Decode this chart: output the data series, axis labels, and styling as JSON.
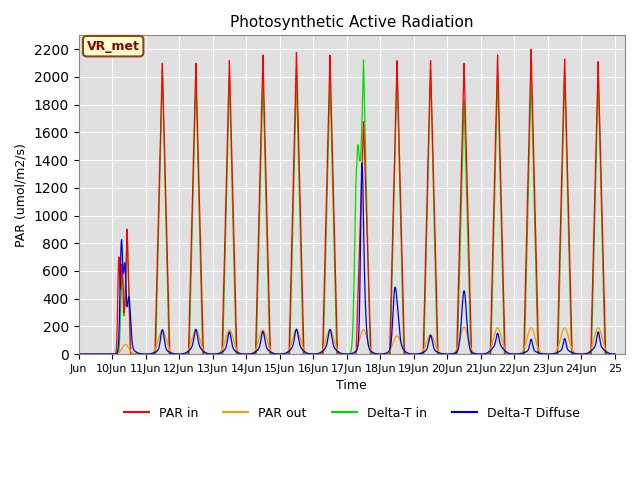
{
  "title": "Photosynthetic Active Radiation",
  "ylabel": "PAR (umol/m2/s)",
  "xlabel": "Time",
  "annotation": "VR_met",
  "xlim_start": 9.0,
  "xlim_end": 25.3,
  "ylim": [
    0,
    2300
  ],
  "yticks": [
    0,
    200,
    400,
    600,
    800,
    1000,
    1200,
    1400,
    1600,
    1800,
    2000,
    2200
  ],
  "xtick_positions": [
    9,
    10,
    11,
    12,
    13,
    14,
    15,
    16,
    17,
    18,
    19,
    20,
    21,
    22,
    23,
    24,
    25
  ],
  "xtick_labels": [
    "Jun",
    "10Jun",
    "11Jun",
    "12Jun",
    "13Jun",
    "14Jun",
    "15Jun",
    "16Jun",
    "17Jun",
    "18Jun",
    "19Jun",
    "20Jun",
    "21Jun",
    "22Jun",
    "23Jun",
    "24Jun",
    "25"
  ],
  "colors": {
    "PAR_in": "#ff0000",
    "PAR_out": "#ff9900",
    "Delta_T_in": "#00dd00",
    "Delta_T_Diffuse": "#0000dd"
  },
  "legend_labels": [
    "PAR in",
    "PAR out",
    "Delta-T in",
    "Delta-T Diffuse"
  ],
  "background_color": "#ffffff",
  "plot_bg_color": "#e0e0e0",
  "grid_color": "#ffffff"
}
